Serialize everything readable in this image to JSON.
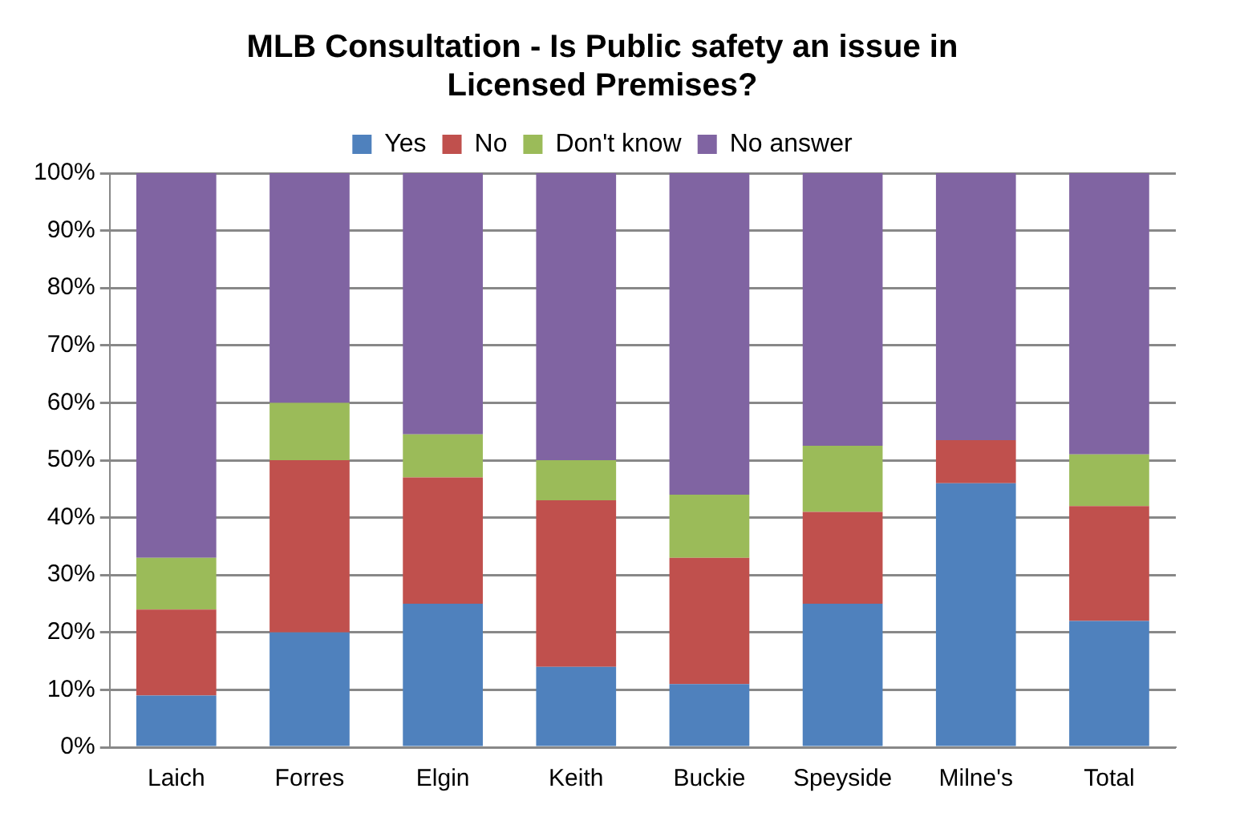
{
  "chart_data": {
    "type": "bar",
    "stacked": true,
    "title": "MLB Consultation - Is Public safety an issue in Licensed Premises?",
    "categories": [
      "Laich",
      "Forres",
      "Elgin",
      "Keith",
      "Buckie",
      "Speyside",
      "Milne's",
      "Total"
    ],
    "series": [
      {
        "name": "Yes",
        "color": "#4f81bd",
        "values": [
          9,
          20,
          25,
          14,
          11,
          25,
          46,
          22
        ]
      },
      {
        "name": "No",
        "color": "#c0504d",
        "values": [
          15,
          30,
          22,
          29,
          22,
          16,
          7.5,
          20
        ]
      },
      {
        "name": "Don't know",
        "color": "#9bbb59",
        "values": [
          9,
          10,
          7.5,
          7,
          11,
          11.5,
          0,
          9
        ]
      },
      {
        "name": "No answer",
        "color": "#8064a2",
        "values": [
          67,
          40,
          45.5,
          50,
          56,
          47.5,
          46.5,
          49
        ]
      }
    ],
    "ylim": [
      0,
      100
    ],
    "yticks": [
      {
        "value": 0,
        "label": "0%"
      },
      {
        "value": 10,
        "label": "10%"
      },
      {
        "value": 20,
        "label": "20%"
      },
      {
        "value": 30,
        "label": "30%"
      },
      {
        "value": 40,
        "label": "40%"
      },
      {
        "value": 50,
        "label": "50%"
      },
      {
        "value": 60,
        "label": "60%"
      },
      {
        "value": 70,
        "label": "70%"
      },
      {
        "value": 80,
        "label": "80%"
      },
      {
        "value": 90,
        "label": "90%"
      },
      {
        "value": 100,
        "label": "100%"
      }
    ],
    "grid": "y",
    "legend": "top"
  }
}
